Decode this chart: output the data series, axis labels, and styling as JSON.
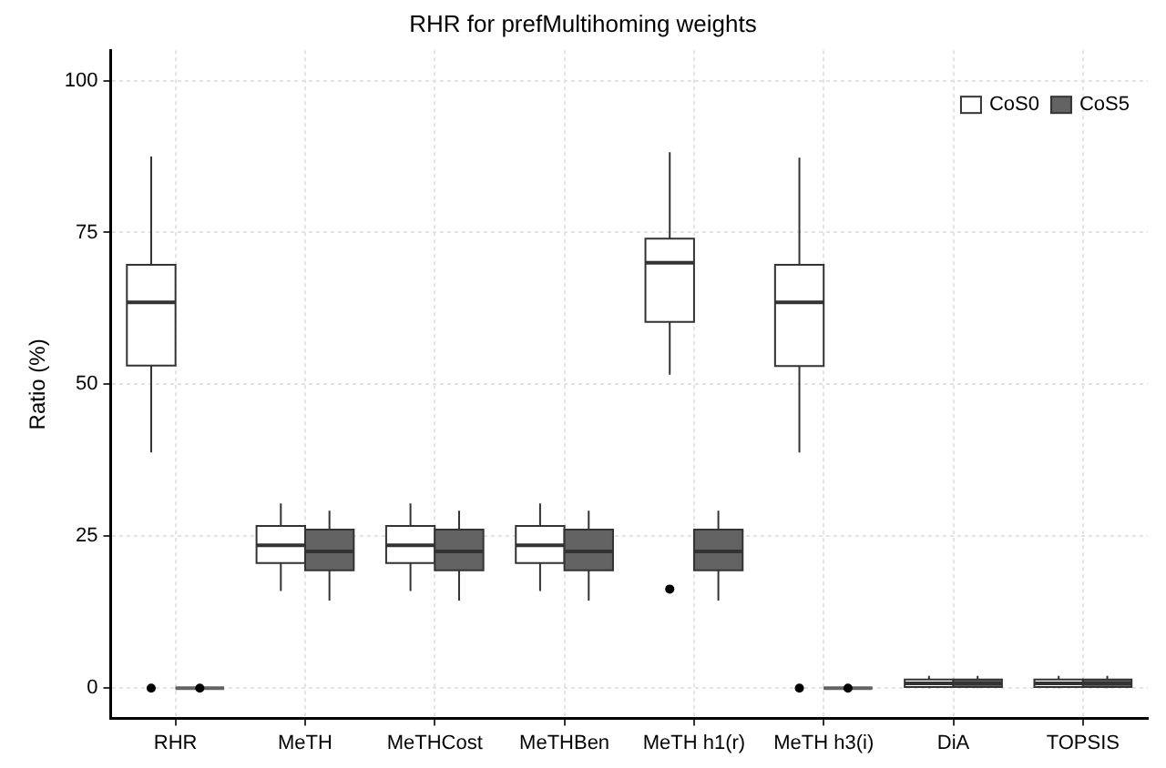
{
  "chart_data": {
    "type": "box",
    "title": "RHR for prefMultihoming weights",
    "ylabel": "Ratio (%)",
    "categories": [
      "RHR",
      "MeTH",
      "MeTHCost",
      "MeTHBen",
      "MeTH h1(r)",
      "MeTH h3(i)",
      "DiA",
      "TOPSIS"
    ],
    "ylim": [
      -5,
      105
    ],
    "yticks": [
      0,
      25,
      50,
      75,
      100
    ],
    "grid": true,
    "legend": "top right",
    "series": [
      {
        "name": "CoS0",
        "color": "#ffffff",
        "boxes": [
          {
            "low": 38.8,
            "q1": 53.1,
            "median": 63.5,
            "q3": 69.7,
            "high": 87.5,
            "outliers": [
              0
            ]
          },
          {
            "low": 16.0,
            "q1": 20.6,
            "median": 23.5,
            "q3": 26.7,
            "high": 30.4
          },
          {
            "low": 16.0,
            "q1": 20.6,
            "median": 23.5,
            "q3": 26.7,
            "high": 30.4
          },
          {
            "low": 16.0,
            "q1": 20.6,
            "median": 23.5,
            "q3": 26.7,
            "high": 30.4
          },
          {
            "low": 51.6,
            "q1": 60.3,
            "median": 70.0,
            "q3": 74.0,
            "high": 88.2,
            "outliers": [
              16.3
            ]
          },
          {
            "low": 38.8,
            "q1": 53.0,
            "median": 63.5,
            "q3": 69.7,
            "high": 87.3,
            "outliers": [
              0
            ]
          },
          {
            "low": 0,
            "q1": 0.2,
            "median": 0.8,
            "q3": 1.4,
            "high": 2.0
          },
          {
            "low": 0,
            "q1": 0.2,
            "median": 0.8,
            "q3": 1.4,
            "high": 2.0
          }
        ]
      },
      {
        "name": "CoS5",
        "color": "#636363",
        "boxes": [
          {
            "low": 0,
            "q1": 0,
            "median": 0,
            "q3": 0,
            "high": 0,
            "outliers": [
              0
            ]
          },
          {
            "low": 14.4,
            "q1": 19.4,
            "median": 22.5,
            "q3": 26.1,
            "high": 29.2
          },
          {
            "low": 14.4,
            "q1": 19.4,
            "median": 22.5,
            "q3": 26.1,
            "high": 29.2
          },
          {
            "low": 14.4,
            "q1": 19.4,
            "median": 22.5,
            "q3": 26.1,
            "high": 29.2
          },
          {
            "low": 14.4,
            "q1": 19.4,
            "median": 22.5,
            "q3": 26.1,
            "high": 29.2
          },
          {
            "low": 0,
            "q1": 0,
            "median": 0,
            "q3": 0,
            "high": 0,
            "outliers": [
              0
            ]
          },
          {
            "low": 0,
            "q1": 0.2,
            "median": 0.8,
            "q3": 1.4,
            "high": 2.0
          },
          {
            "low": 0,
            "q1": 0.2,
            "median": 0.8,
            "q3": 1.4,
            "high": 2.0
          }
        ]
      }
    ]
  }
}
